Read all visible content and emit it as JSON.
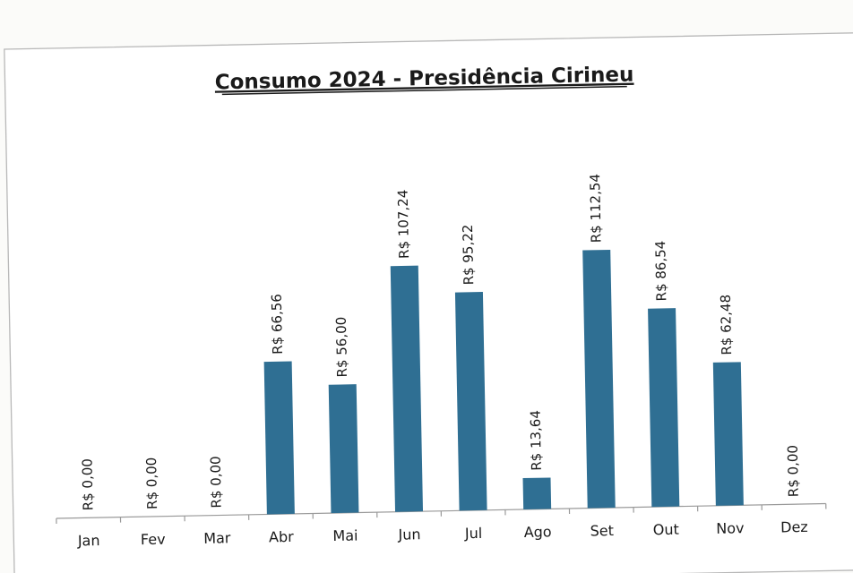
{
  "chart_data": {
    "type": "bar",
    "title": "Consumo 2024 - Presidência Cirineu",
    "categories": [
      "Jan",
      "Fev",
      "Mar",
      "Abr",
      "Mai",
      "Jun",
      "Jul",
      "Ago",
      "Set",
      "Out",
      "Nov",
      "Dez"
    ],
    "values": [
      0.0,
      0.0,
      0.0,
      66.56,
      56.0,
      107.24,
      95.22,
      13.64,
      112.54,
      86.54,
      62.48,
      0.0
    ],
    "data_labels": [
      "R$ 0,00",
      "R$ 0,00",
      "R$ 0,00",
      "R$ 66,56",
      "R$ 56,00",
      "R$ 107,24",
      "R$ 95,22",
      "R$ 13,64",
      "R$ 112,54",
      "R$ 86,54",
      "R$ 62,48",
      "R$ 0,00"
    ],
    "xlabel": "",
    "ylabel": "",
    "ylim": [
      0,
      120
    ],
    "grid": false,
    "legend": "none",
    "colors": {
      "bar": "#2f6f93",
      "text": "#1a1a1a",
      "axis": "#9a9a9a",
      "border": "#b8b8b8"
    }
  }
}
